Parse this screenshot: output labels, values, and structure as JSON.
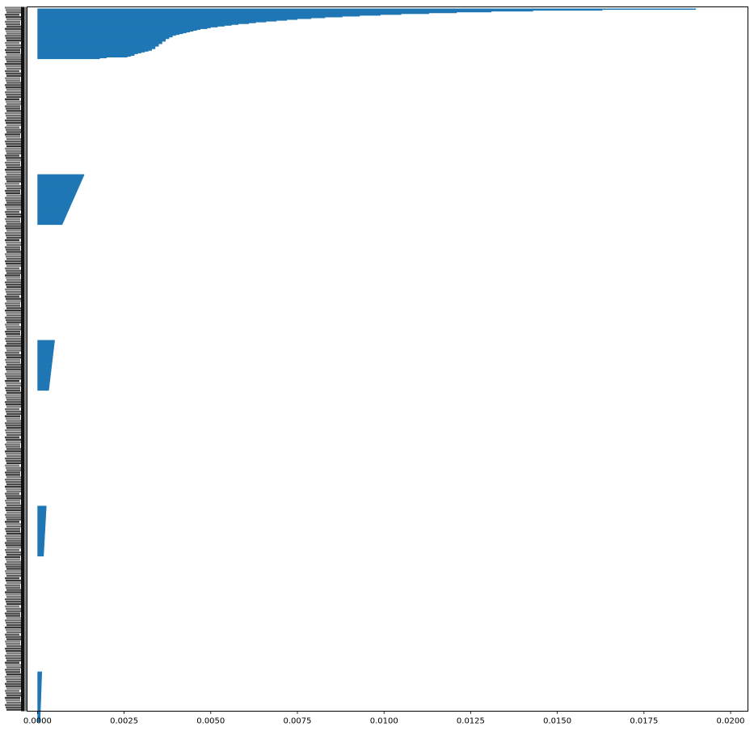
{
  "chart_data": {
    "type": "bar",
    "orientation": "horizontal",
    "title": "",
    "xlabel": "",
    "ylabel": "",
    "xlim": [
      -0.0003,
      0.0205
    ],
    "xticks": [
      0.0,
      0.0025,
      0.005,
      0.0075,
      0.01,
      0.0125,
      0.015,
      0.0175,
      0.02
    ],
    "xtick_labels": [
      "0.0000",
      "0.0025",
      "0.0050",
      "0.0075",
      "0.0100",
      "0.0125",
      "0.0150",
      "0.0175",
      "0.0200"
    ],
    "ytick_labels_legible": false,
    "grid": false,
    "legend": "none",
    "colors": {
      "bar": "#1f77b4",
      "axis": "#000000",
      "background": "#ffffff"
    },
    "series": [
      {
        "group": 1,
        "bar_count": 60,
        "values_descending": [
          0.019,
          0.0163,
          0.0143,
          0.0131,
          0.0121,
          0.0113,
          0.0105,
          0.0099,
          0.0093,
          0.0088,
          0.0083,
          0.0079,
          0.0075,
          0.0072,
          0.0069,
          0.0066,
          0.0063,
          0.0061,
          0.0058,
          0.0056,
          0.0054,
          0.0052,
          0.005,
          0.0049,
          0.0047,
          0.0046,
          0.0045,
          0.0044,
          0.0043,
          0.0042,
          0.0041,
          0.004,
          0.0039,
          0.0039,
          0.0038,
          0.0038,
          0.0037,
          0.0037,
          0.0037,
          0.0036,
          0.0036,
          0.0036,
          0.0035,
          0.0035,
          0.0035,
          0.0034,
          0.0034,
          0.0034,
          0.0033,
          0.0033,
          0.0032,
          0.0031,
          0.003,
          0.0029,
          0.0028,
          0.0028,
          0.0027,
          0.0026,
          0.002,
          0.0018
        ]
      },
      {
        "group": 2,
        "bar_count": 60,
        "max": 0.00135,
        "min": 0.00072
      },
      {
        "group": 3,
        "bar_count": 60,
        "max": 0.0005,
        "min": 0.00033
      },
      {
        "group": 4,
        "bar_count": 60,
        "max": 0.00026,
        "min": 0.00018
      },
      {
        "group": 5,
        "bar_count": 52,
        "max": 0.00013,
        "min": 8e-05
      }
    ]
  }
}
